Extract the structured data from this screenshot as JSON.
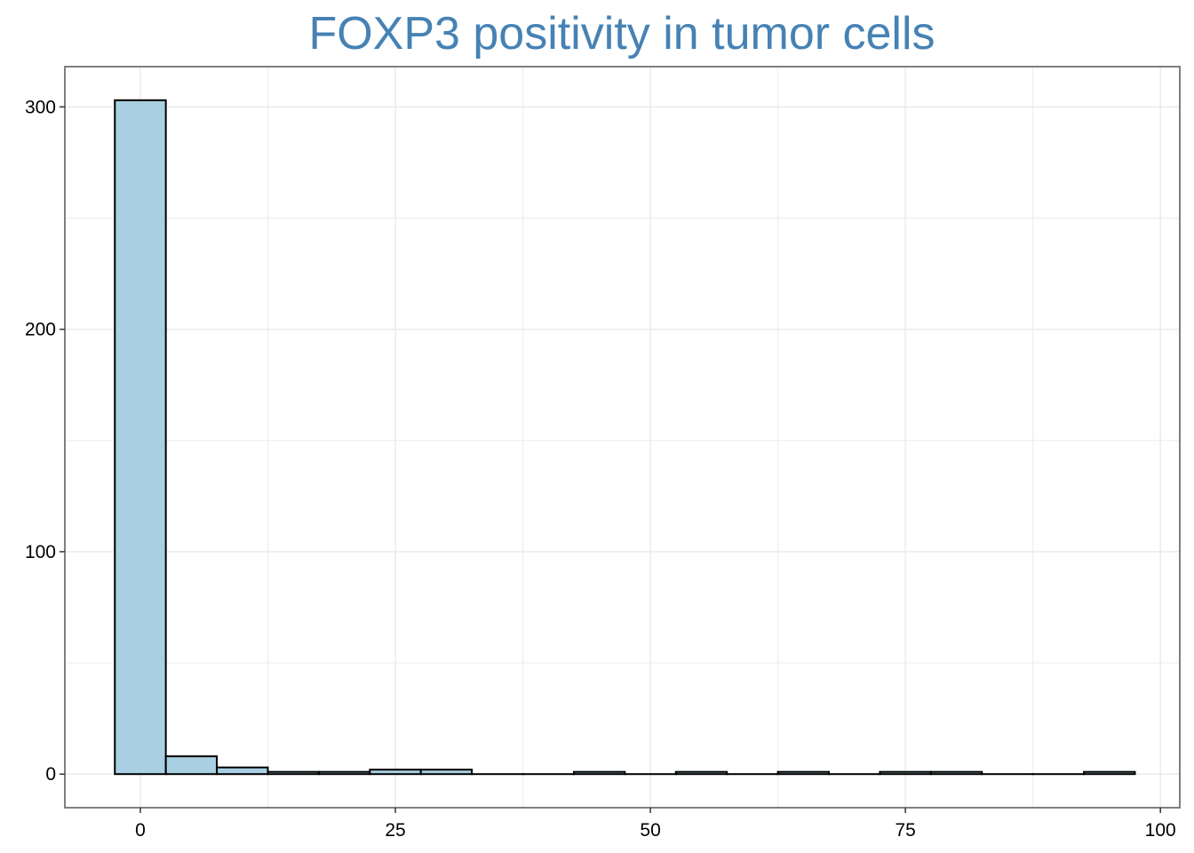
{
  "colors": {
    "title": "#4682b4",
    "bar_fill": "#a8cfe2",
    "bar_stroke": "#000000",
    "grid": "#ebebeb",
    "panel_border": "#7f7f7f"
  },
  "chart_data": {
    "type": "bar",
    "title": "FOXP3 positivity in tumor cells",
    "xlabel": "",
    "ylabel": "",
    "bin_width": 5,
    "bins": [
      {
        "x": 0,
        "count": 303
      },
      {
        "x": 5,
        "count": 8
      },
      {
        "x": 10,
        "count": 3
      },
      {
        "x": 15,
        "count": 1
      },
      {
        "x": 20,
        "count": 1
      },
      {
        "x": 25,
        "count": 2
      },
      {
        "x": 30,
        "count": 2
      },
      {
        "x": 35,
        "count": 0
      },
      {
        "x": 40,
        "count": 0
      },
      {
        "x": 45,
        "count": 1
      },
      {
        "x": 50,
        "count": 0
      },
      {
        "x": 55,
        "count": 1
      },
      {
        "x": 60,
        "count": 0
      },
      {
        "x": 65,
        "count": 1
      },
      {
        "x": 70,
        "count": 0
      },
      {
        "x": 75,
        "count": 1
      },
      {
        "x": 80,
        "count": 1
      },
      {
        "x": 85,
        "count": 0
      },
      {
        "x": 90,
        "count": 0
      },
      {
        "x": 95,
        "count": 1
      }
    ],
    "x_ticks": [
      "0",
      "25",
      "50",
      "75",
      "100"
    ],
    "y_ticks": [
      "0",
      "100",
      "200",
      "300"
    ],
    "xlim": [
      -7.4,
      101.9
    ],
    "ylim": [
      -15.1,
      318.1
    ],
    "grid": true,
    "legend": "none"
  }
}
